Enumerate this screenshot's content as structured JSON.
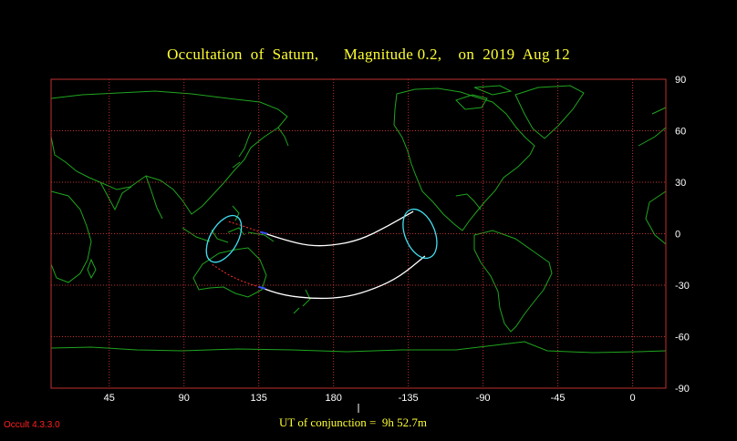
{
  "title": {
    "prefix": "Occultation  of  Saturn,",
    "magnitude": "Magnitude 0.2,",
    "date": "on  2019  Aug 12"
  },
  "footer": {
    "conjunction_label": "UT of conjunction =",
    "conjunction_time": "9h 52.7m",
    "version": "Occult 4.3.3.0"
  },
  "axes": {
    "longitude_labels": [
      "45",
      "90",
      "135",
      "180",
      "-135",
      "-90",
      "-45",
      "0"
    ],
    "latitude_labels": [
      "90",
      "60",
      "30",
      "0",
      "-30",
      "-60",
      "-90"
    ]
  },
  "colors": {
    "grid": "#c03030",
    "coast": "#1fa51f",
    "path": "#ffffff",
    "ellipse": "#40e0f0",
    "title": "#ffff33"
  },
  "chart_data": {
    "type": "map",
    "projection": "equirectangular",
    "longitude_range": [
      10,
      20
    ],
    "longitude_note": "map spans 10E through 180 to 20E",
    "latitude_range": [
      -90,
      90
    ],
    "grid_longitudes": [
      45,
      90,
      135,
      180,
      -135,
      -90,
      -45,
      0
    ],
    "grid_latitudes": [
      60,
      30,
      0,
      -30,
      -60
    ],
    "occultation_north_limit": [
      [
        136,
        1
      ],
      [
        152,
        -4
      ],
      [
        165,
        -7
      ],
      [
        178,
        -7
      ],
      [
        195,
        -4
      ],
      [
        212,
        4
      ],
      [
        228,
        13
      ]
    ],
    "occultation_south_limit": [
      [
        135,
        -31
      ],
      [
        150,
        -36
      ],
      [
        170,
        -38
      ],
      [
        188,
        -37
      ],
      [
        205,
        -32
      ],
      [
        220,
        -25
      ],
      [
        235,
        -13
      ]
    ],
    "daylight_north_limit": [
      [
        117,
        7
      ],
      [
        127,
        4
      ],
      [
        136,
        1
      ]
    ],
    "daylight_south_limit": [
      [
        107,
        -18
      ],
      [
        120,
        -26
      ],
      [
        135,
        -31
      ]
    ],
    "sunset_ellipse": {
      "center": [
        114,
        -3
      ],
      "semi_axes_deg": [
        5.5,
        15
      ],
      "tilt_deg": 30
    },
    "sunrise_ellipse": {
      "center": [
        232,
        0
      ],
      "semi_axes_deg": [
        6,
        15
      ],
      "tilt_deg": -22
    }
  }
}
